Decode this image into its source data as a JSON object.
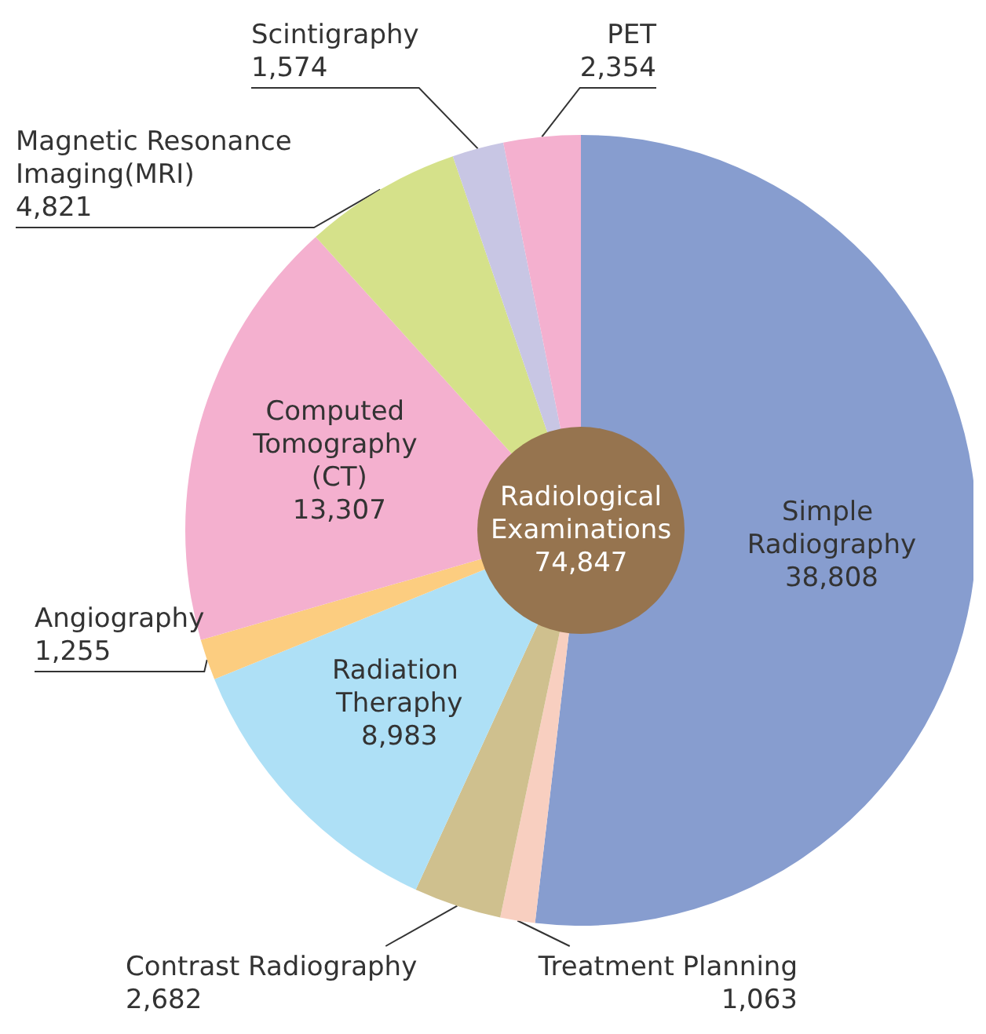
{
  "chart_data": {
    "type": "donut",
    "categories": [
      "Simple Radiography",
      "Treatment Planning",
      "Contrast Radiography",
      "Radiation Theraphy",
      "Angiography",
      "Computed Tomography (CT)",
      "Magnetic Resonance Imaging(MRI)",
      "Scintigraphy",
      "PET"
    ],
    "values": [
      38808,
      1063,
      2682,
      8983,
      1255,
      13307,
      4821,
      1574,
      2354
    ],
    "value_labels": [
      "38,808",
      "1,063",
      "2,682",
      "8,983",
      "1,255",
      "13,307",
      "4,821",
      "1,574",
      "2,354"
    ],
    "colors": [
      "#879dcf",
      "#f8cfc0",
      "#cfc08e",
      "#aee0f6",
      "#fccd80",
      "#f4b0cf",
      "#d5e18a",
      "#c8c6e4",
      "#f4b0cf"
    ],
    "annotations": [
      "Radiological Examinations",
      "74,847"
    ],
    "legend": false
  }
}
